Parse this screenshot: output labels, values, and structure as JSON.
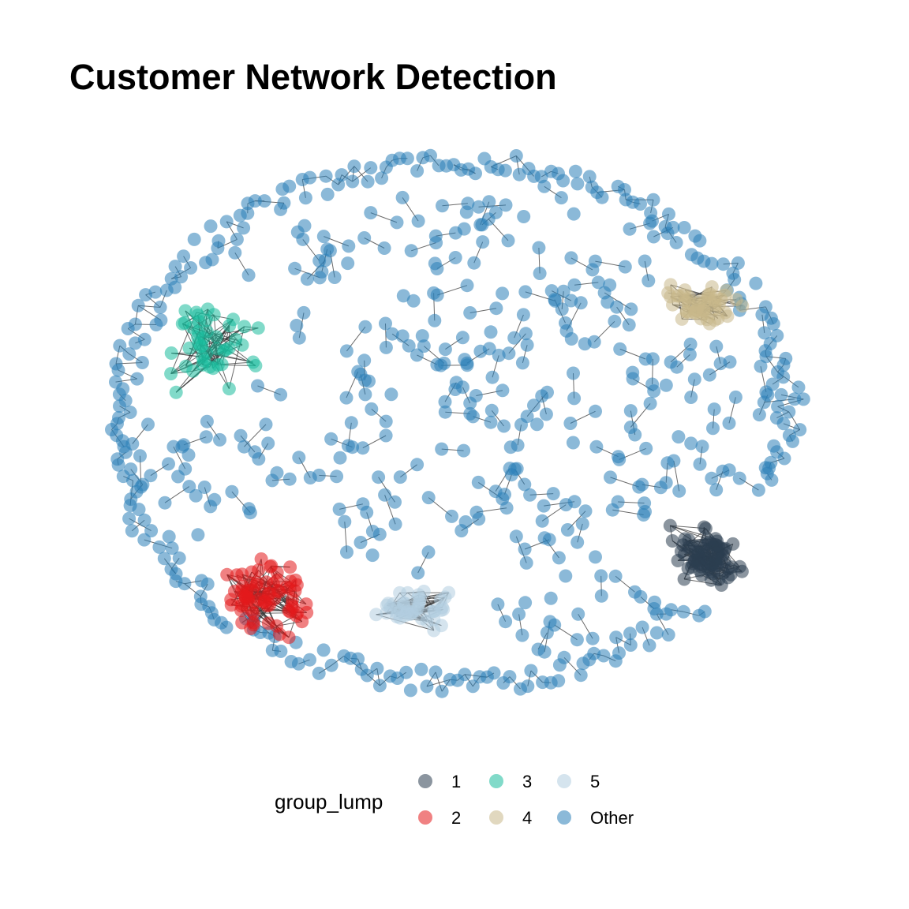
{
  "chart_data": {
    "type": "network",
    "title": "Customer Network Detection",
    "legend": {
      "title": "group_lump",
      "position": "bottom",
      "entries": [
        {
          "label": "1",
          "color": "#2c3e50"
        },
        {
          "label": "2",
          "color": "#e31a1c"
        },
        {
          "label": "3",
          "color": "#1abc9c"
        },
        {
          "label": "4",
          "color": "#c8b88a"
        },
        {
          "label": "5",
          "color": "#b3cde0"
        },
        {
          "label": "Other",
          "color": "#2c7fb8"
        }
      ]
    },
    "groups": [
      {
        "group": "1",
        "node_count": 75
      },
      {
        "group": "2",
        "node_count": 70
      },
      {
        "group": "3",
        "node_count": 45
      },
      {
        "group": "4",
        "node_count": 50
      },
      {
        "group": "5",
        "node_count": 45
      },
      {
        "group": "Other",
        "node_count": 620
      }
    ],
    "node_style": {
      "opacity": 0.55,
      "edge_color": "#3a3a3a"
    },
    "grid": false,
    "axes": false
  }
}
